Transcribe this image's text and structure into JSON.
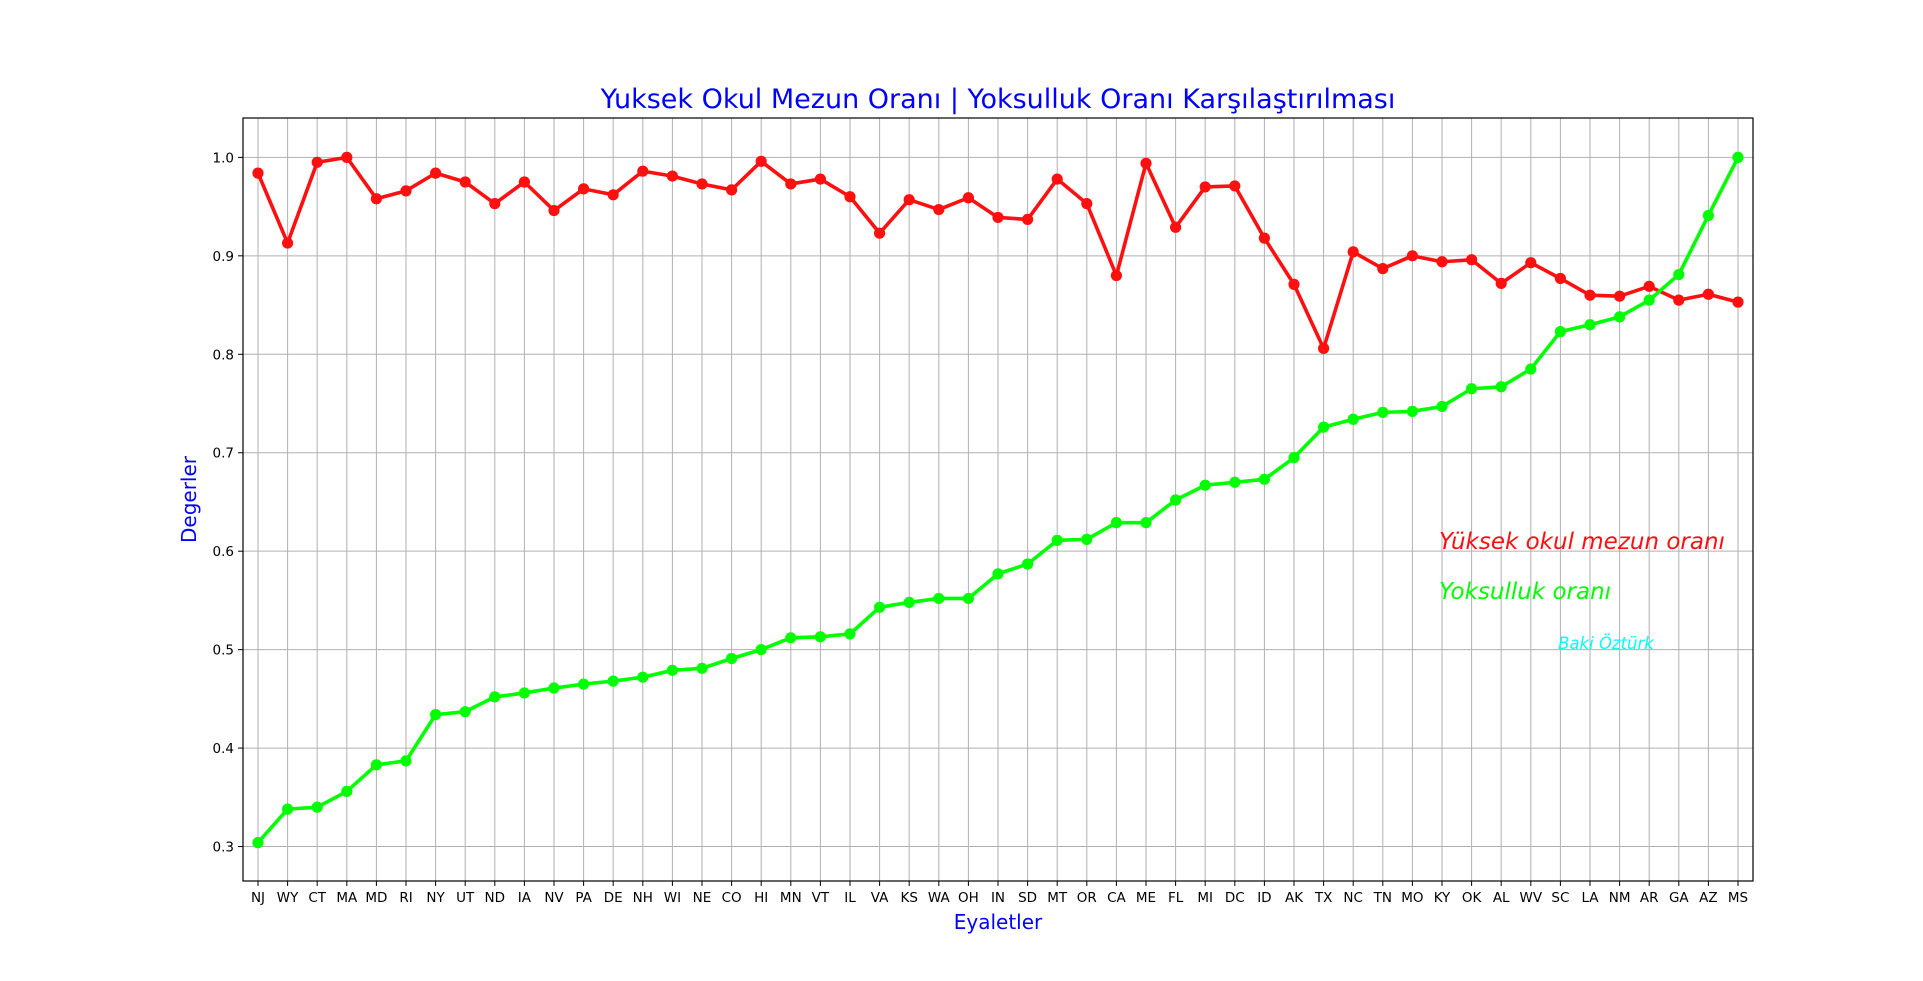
{
  "chart_data": {
    "type": "line",
    "title": "Yuksek Okul Mezun Oranı | Yoksulluk Oranı Karşılaştırılması",
    "xlabel": "Eyaletler",
    "ylabel": "Degerler",
    "ylim": [
      0.265,
      1.04
    ],
    "yticks": [
      "0.3",
      "0.4",
      "0.5",
      "0.6",
      "0.7",
      "0.8",
      "0.9",
      "1.0"
    ],
    "grid": true,
    "categories": [
      "NJ",
      "WY",
      "CT",
      "MA",
      "MD",
      "RI",
      "NY",
      "UT",
      "ND",
      "IA",
      "NV",
      "PA",
      "DE",
      "NH",
      "WI",
      "NE",
      "CO",
      "HI",
      "MN",
      "VT",
      "IL",
      "VA",
      "KS",
      "WA",
      "OH",
      "IN",
      "SD",
      "MT",
      "OR",
      "CA",
      "ME",
      "FL",
      "MI",
      "DC",
      "ID",
      "AK",
      "TX",
      "NC",
      "TN",
      "MO",
      "KY",
      "OK",
      "AL",
      "WV",
      "SC",
      "LA",
      "NM",
      "AR",
      "GA",
      "AZ",
      "MS"
    ],
    "series": [
      {
        "name": "Yüksek okul mezun oranı",
        "color": "#ff1010",
        "values": [
          0.984,
          0.913,
          0.995,
          1.0,
          0.958,
          0.966,
          0.984,
          0.975,
          0.953,
          0.975,
          0.946,
          0.968,
          0.962,
          0.986,
          0.981,
          0.973,
          0.967,
          0.996,
          0.973,
          0.978,
          0.96,
          0.923,
          0.957,
          0.947,
          0.959,
          0.939,
          0.937,
          0.978,
          0.953,
          0.88,
          0.994,
          0.929,
          0.97,
          0.971,
          0.918,
          0.871,
          0.806,
          0.904,
          0.887,
          0.9,
          0.894,
          0.896,
          0.872,
          0.893,
          0.877,
          0.86,
          0.859,
          0.869,
          0.855,
          0.861,
          0.853
        ]
      },
      {
        "name": "Yoksulluk oranı",
        "color": "#00ff00",
        "values": [
          0.304,
          0.338,
          0.34,
          0.356,
          0.383,
          0.387,
          0.434,
          0.437,
          0.452,
          0.456,
          0.461,
          0.465,
          0.468,
          0.472,
          0.479,
          0.481,
          0.491,
          0.5,
          0.512,
          0.513,
          0.516,
          0.543,
          0.548,
          0.552,
          0.552,
          0.577,
          0.587,
          0.611,
          0.612,
          0.629,
          0.629,
          0.652,
          0.667,
          0.67,
          0.673,
          0.695,
          0.726,
          0.734,
          0.741,
          0.742,
          0.747,
          0.765,
          0.767,
          0.785,
          0.823,
          0.83,
          0.838,
          0.855,
          0.881,
          0.941,
          1.0
        ]
      }
    ],
    "legend_placement": "right, inside plot",
    "annotations": {
      "series1_label": "Yüksek okul mezun oranı",
      "series2_label": "Yoksulluk oranı",
      "author": "Baki Öztürk"
    },
    "colors": {
      "title": "#0000ff",
      "axis_title": "#0000ff",
      "author": "#00ffff",
      "grid": "#b0b0b0"
    }
  }
}
